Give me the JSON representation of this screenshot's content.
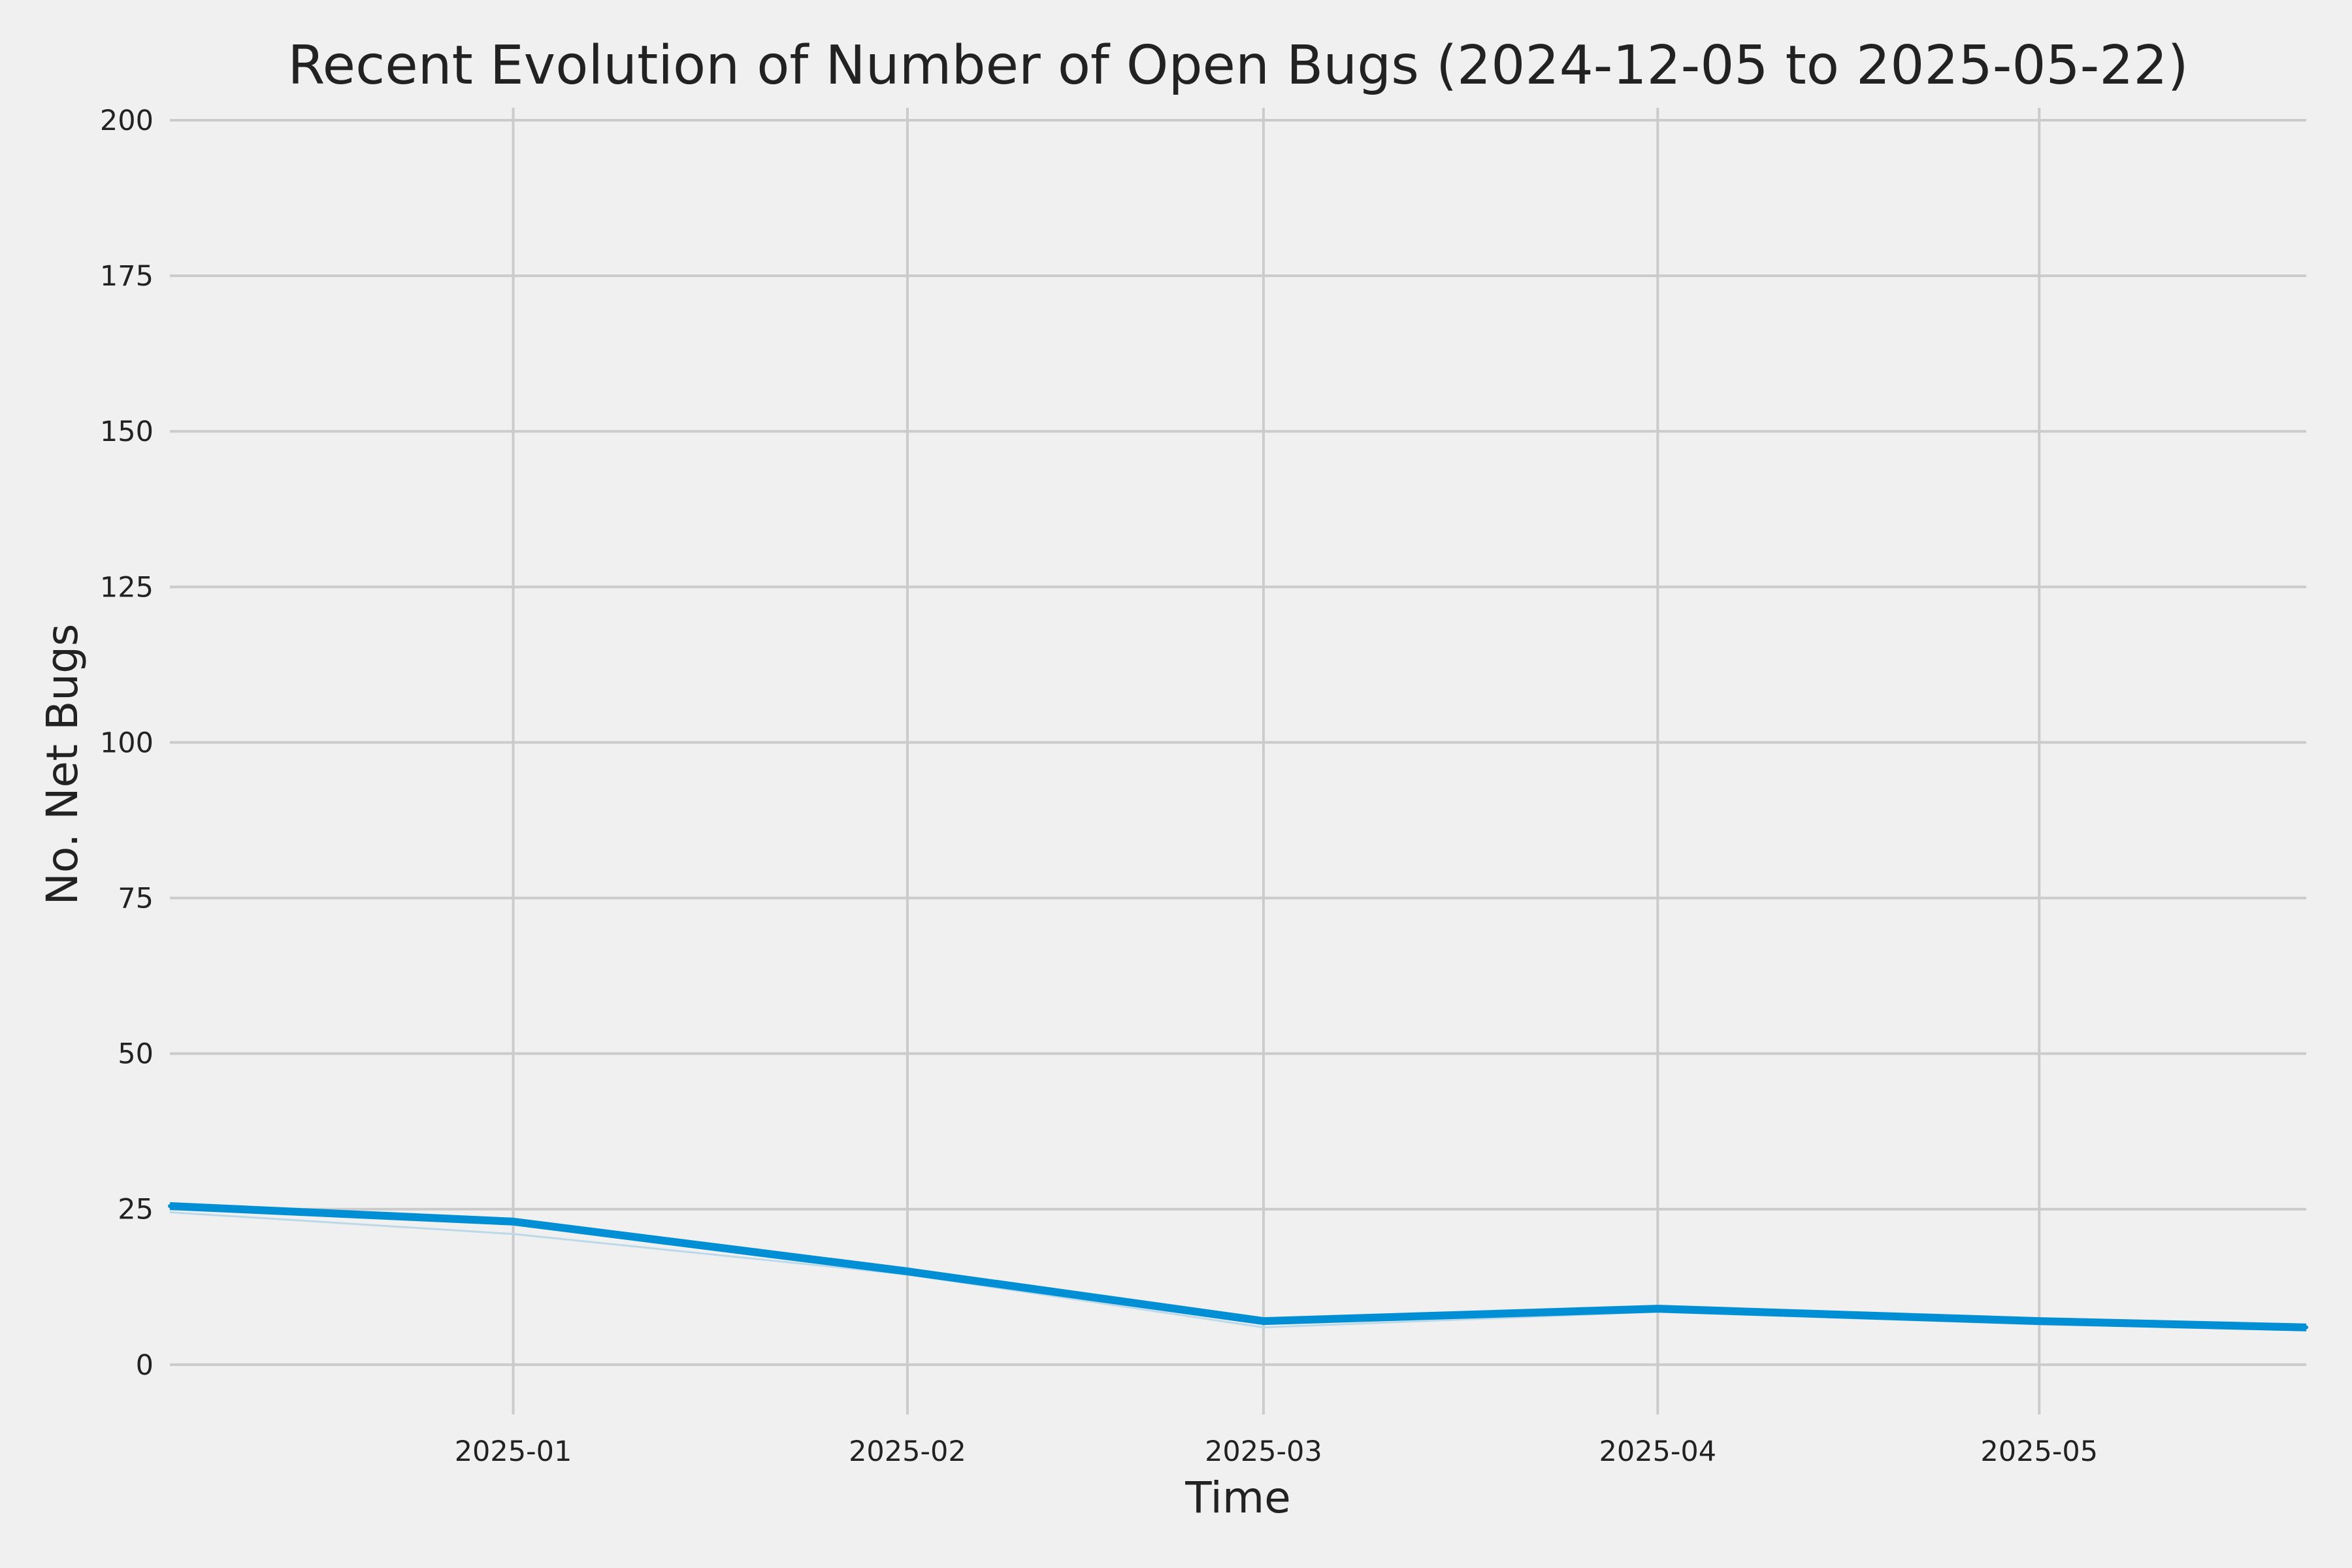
{
  "chart_data": {
    "type": "line",
    "title": "Recent Evolution of Number of Open Bugs (2024-12-05 to 2025-05-22)",
    "xlabel": "Time",
    "ylabel": "No. Net Bugs",
    "x_type": "date",
    "xlim": [
      "2024-12-05",
      "2025-05-22"
    ],
    "ylim": [
      -8,
      202
    ],
    "grid": true,
    "x_ticks": [
      {
        "date": "2025-01-01",
        "label": "2025-01"
      },
      {
        "date": "2025-02-01",
        "label": "2025-02"
      },
      {
        "date": "2025-03-01",
        "label": "2025-03"
      },
      {
        "date": "2025-04-01",
        "label": "2025-04"
      },
      {
        "date": "2025-05-01",
        "label": "2025-05"
      }
    ],
    "y_ticks": [
      0,
      25,
      50,
      75,
      100,
      125,
      150,
      175,
      200
    ],
    "series": [
      {
        "color": "#008fd5",
        "x": [
          "2024-12-05",
          "2025-01-01",
          "2025-02-01",
          "2025-03-01",
          "2025-04-01",
          "2025-05-01",
          "2025-05-22"
        ],
        "values": [
          25.5,
          23,
          15,
          7,
          9,
          7,
          6
        ]
      },
      {
        "color": "#bcd9ea",
        "x": [
          "2024-12-05",
          "2025-01-01",
          "2025-02-01",
          "2025-03-01",
          "2025-04-01",
          "2025-05-01",
          "2025-05-22"
        ],
        "values": [
          24.5,
          21,
          14.5,
          6,
          8.5,
          6.5,
          5.5
        ]
      }
    ]
  }
}
